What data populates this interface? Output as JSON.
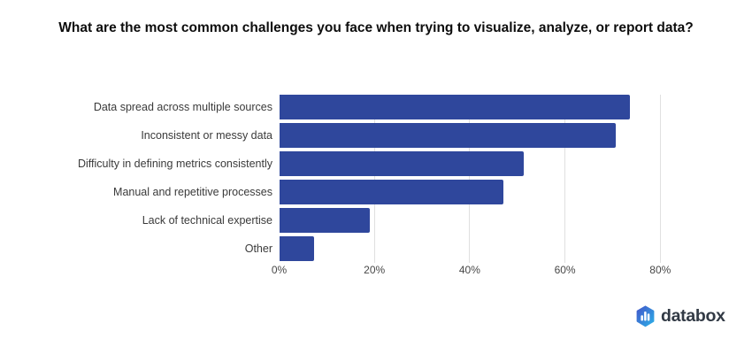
{
  "title": "What are the most common challenges you face when trying to visualize, analyze, or report data?",
  "chart_data": {
    "type": "bar",
    "orientation": "horizontal",
    "title": "What are the most common challenges you face when trying to visualize, analyze, or report data?",
    "categories": [
      "Data spread across multiple sources",
      "Inconsistent or messy data",
      "Difficulty in defining metrics consistently",
      "Manual and repetitive processes",
      "Lack of technical expertise",
      "Other"
    ],
    "values": [
      73.7,
      70.6,
      51.4,
      47.1,
      19.0,
      7.3
    ],
    "unit": "%",
    "xlabel": "",
    "ylabel": "",
    "xlim": [
      0,
      86
    ],
    "x_ticks": [
      0,
      20,
      40,
      60,
      80
    ],
    "x_tick_labels": [
      "0%",
      "20%",
      "40%",
      "60%",
      "80%"
    ],
    "grid": "vertical-gridlines-only",
    "legend": "none",
    "bar_color": "#2F479C",
    "gridline_color": "#E0E0E0",
    "category_label_color": "#3A3A3A",
    "tick_label_color": "#474747",
    "background_color": "#FFFFFF"
  },
  "logo": {
    "text": "databox",
    "icon": "databox-hexagon-bar-chart-icon",
    "text_color": "#323A45",
    "icon_gradient_start": "#4353C9",
    "icon_gradient_end": "#2BB3E8"
  }
}
